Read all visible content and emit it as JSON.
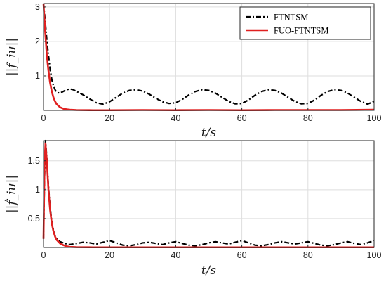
{
  "chart_data": [
    {
      "type": "line",
      "ylabel": "||f_iu||",
      "xlabel": "t/s",
      "xlim": [
        0,
        100
      ],
      "ylim": [
        0,
        3.1
      ],
      "xticks": [
        0,
        20,
        40,
        60,
        80,
        100
      ],
      "xtick_labels": [
        "0",
        "20",
        "40",
        "60",
        "80",
        "100"
      ],
      "yticks": [
        1,
        2,
        3
      ],
      "ytick_labels": [
        "1",
        "2",
        "3"
      ],
      "grid": true,
      "legend_position": "top-right",
      "series": [
        {
          "name": "FTNTSM",
          "color": "#000000",
          "dash": "dash-dot",
          "x": [
            0,
            0.5,
            1,
            1.5,
            2,
            2.5,
            3,
            3.5,
            4,
            5,
            6,
            7,
            8,
            9,
            10,
            12,
            14,
            16,
            18,
            20,
            22,
            24,
            26,
            28,
            30,
            32,
            34,
            36,
            38,
            40,
            42,
            44,
            46,
            48,
            50,
            52,
            54,
            56,
            58,
            60,
            62,
            64,
            66,
            68,
            70,
            72,
            74,
            76,
            78,
            80,
            82,
            84,
            86,
            88,
            90,
            92,
            94,
            96,
            98,
            100
          ],
          "y": [
            3.1,
            2.6,
            2.05,
            1.6,
            1.2,
            0.9,
            0.72,
            0.6,
            0.52,
            0.5,
            0.55,
            0.6,
            0.62,
            0.6,
            0.55,
            0.45,
            0.33,
            0.22,
            0.18,
            0.25,
            0.38,
            0.5,
            0.58,
            0.6,
            0.56,
            0.47,
            0.35,
            0.25,
            0.2,
            0.22,
            0.32,
            0.45,
            0.55,
            0.6,
            0.58,
            0.5,
            0.38,
            0.26,
            0.19,
            0.2,
            0.3,
            0.44,
            0.55,
            0.6,
            0.58,
            0.5,
            0.38,
            0.26,
            0.19,
            0.2,
            0.3,
            0.44,
            0.55,
            0.6,
            0.58,
            0.5,
            0.38,
            0.26,
            0.18,
            0.26
          ]
        },
        {
          "name": "FUO-FTNTSM",
          "color": "#e02020",
          "dash": "solid",
          "x": [
            0,
            0.5,
            1,
            1.5,
            2,
            2.5,
            3,
            3.5,
            4,
            5,
            6,
            7,
            8,
            10,
            15,
            20,
            30,
            40,
            50,
            60,
            70,
            80,
            90,
            100
          ],
          "y": [
            3.1,
            2.3,
            1.6,
            1.15,
            0.8,
            0.55,
            0.38,
            0.26,
            0.18,
            0.09,
            0.05,
            0.03,
            0.02,
            0.01,
            0.005,
            0.005,
            0.01,
            0.005,
            0.01,
            0.005,
            0.01,
            0.01,
            0.01,
            0.02
          ]
        }
      ]
    },
    {
      "type": "line",
      "ylabel": "||ḟ_iu||",
      "xlabel": "t/s",
      "xlim": [
        0,
        100
      ],
      "ylim": [
        0,
        1.85
      ],
      "xticks": [
        0,
        20,
        40,
        60,
        80,
        100
      ],
      "xtick_labels": [
        "0",
        "20",
        "40",
        "60",
        "80",
        "100"
      ],
      "yticks": [
        0.5,
        1,
        1.5
      ],
      "ytick_labels": [
        "0.5",
        "1",
        "1.5"
      ],
      "grid": true,
      "series": [
        {
          "name": "FTNTSM",
          "color": "#000000",
          "dash": "dash-dot",
          "x": [
            0,
            0.3,
            0.6,
            1,
            1.5,
            2,
            2.5,
            3,
            3.5,
            4,
            5,
            6,
            7,
            8,
            10,
            12,
            14,
            16,
            18,
            20,
            22,
            24,
            26,
            28,
            30,
            32,
            34,
            36,
            38,
            40,
            42,
            44,
            46,
            48,
            50,
            52,
            54,
            56,
            58,
            60,
            62,
            64,
            66,
            68,
            70,
            72,
            74,
            76,
            78,
            80,
            82,
            84,
            86,
            88,
            90,
            92,
            94,
            96,
            98,
            100
          ],
          "y": [
            0.15,
            1.2,
            1.85,
            1.55,
            1.05,
            0.7,
            0.45,
            0.3,
            0.2,
            0.15,
            0.1,
            0.08,
            0.06,
            0.05,
            0.07,
            0.09,
            0.08,
            0.06,
            0.09,
            0.12,
            0.08,
            0.04,
            0.03,
            0.05,
            0.08,
            0.09,
            0.07,
            0.05,
            0.08,
            0.1,
            0.07,
            0.04,
            0.03,
            0.05,
            0.08,
            0.1,
            0.08,
            0.06,
            0.09,
            0.12,
            0.08,
            0.04,
            0.03,
            0.05,
            0.08,
            0.1,
            0.08,
            0.06,
            0.08,
            0.1,
            0.07,
            0.04,
            0.03,
            0.05,
            0.08,
            0.1,
            0.07,
            0.05,
            0.08,
            0.12
          ]
        },
        {
          "name": "FUO-FTNTSM",
          "color": "#e02020",
          "dash": "solid",
          "x": [
            0,
            0.3,
            0.6,
            1,
            1.5,
            2,
            2.5,
            3,
            3.5,
            4,
            5,
            6,
            7,
            8,
            10,
            15,
            20,
            30,
            40,
            50,
            60,
            70,
            80,
            90,
            100
          ],
          "y": [
            0.15,
            1.4,
            1.8,
            1.5,
            1.0,
            0.65,
            0.42,
            0.28,
            0.19,
            0.13,
            0.07,
            0.04,
            0.02,
            0.01,
            0.005,
            0.003,
            0.003,
            0.003,
            0.003,
            0.003,
            0.003,
            0.003,
            0.003,
            0.003,
            0.003
          ]
        }
      ]
    }
  ],
  "legend": {
    "entries": [
      "FTNTSM",
      "FUO-FTNTSM"
    ]
  }
}
